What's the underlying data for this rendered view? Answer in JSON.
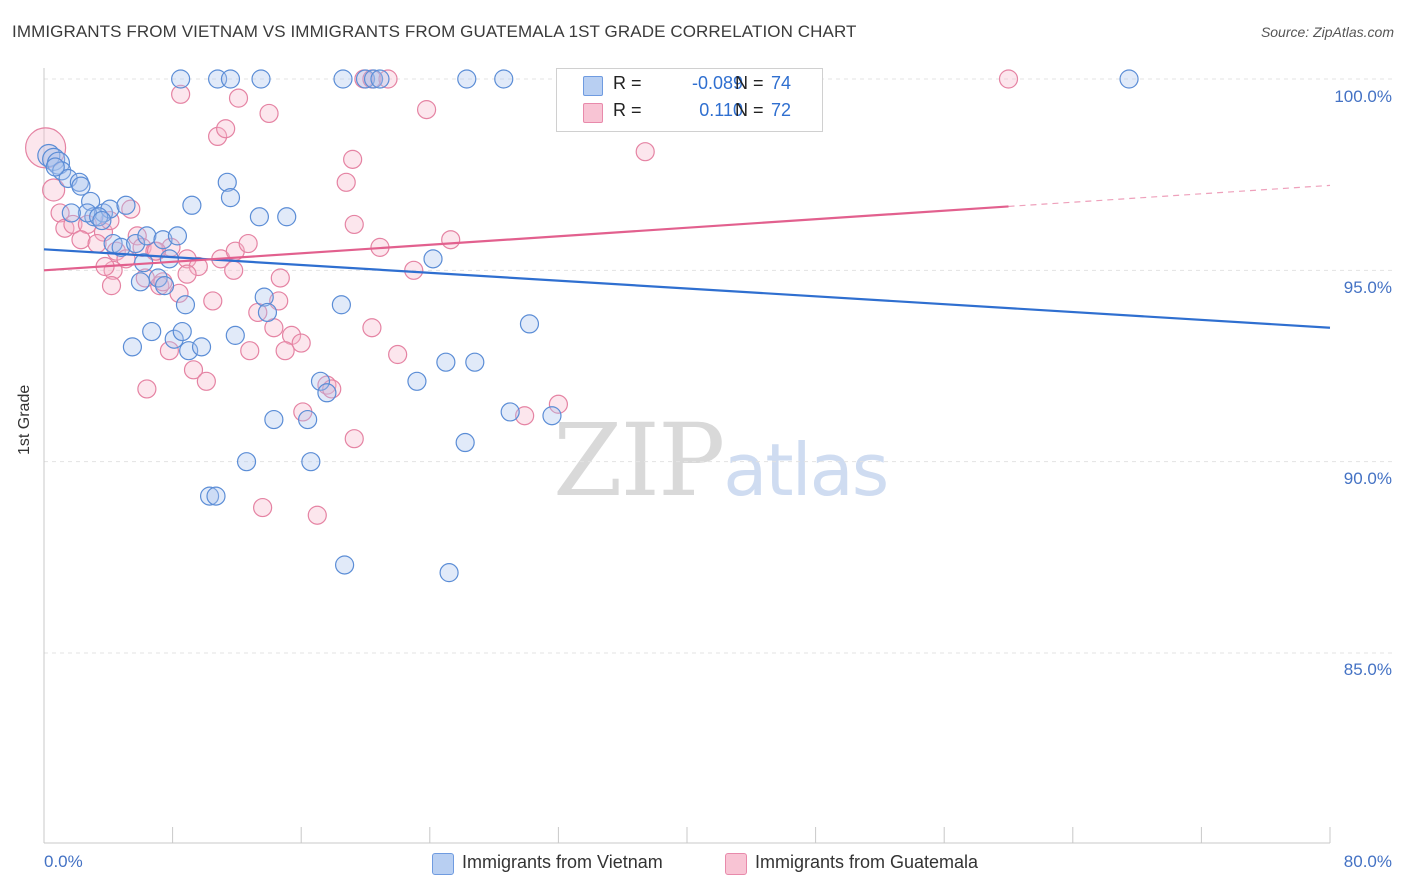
{
  "header": {
    "title": "IMMIGRANTS FROM VIETNAM VS IMMIGRANTS FROM GUATEMALA 1ST GRADE CORRELATION CHART",
    "source": "Source: ZipAtlas.com"
  },
  "watermark": {
    "zip": "ZIP",
    "atlas": "atlas"
  },
  "legend": {
    "vietnam": {
      "r_label": "R =",
      "r_value": "-0.089",
      "n_label": "N =",
      "n_value": "74"
    },
    "guatemala": {
      "r_label": "R =",
      "r_value": "0.110",
      "n_label": "N =",
      "n_value": "72"
    }
  },
  "bottom_legend": {
    "vietnam": "Immigrants from Vietnam",
    "guatemala": "Immigrants from Guatemala"
  },
  "axis": {
    "x_min_label": "0.0%",
    "x_max_label": "80.0%",
    "y_ticks": [
      "100.0%",
      "95.0%",
      "90.0%",
      "85.0%"
    ]
  },
  "colors": {
    "vietnam_fill": "#a9c4ee",
    "vietnam_stroke": "#5b8dd6",
    "vietnam_line": "#2f6fd0",
    "guatemala_fill": "#f6b8cb",
    "guatemala_stroke": "#e583a3",
    "guatemala_line": "#e2608e"
  },
  "chart_data": {
    "type": "scatter",
    "title": "IMMIGRANTS FROM VIETNAM VS IMMIGRANTS FROM GUATEMALA 1ST GRADE CORRELATION CHART",
    "xlabel": "",
    "ylabel": "1st Grade",
    "xlim": [
      0,
      80
    ],
    "ylim": [
      80.5,
      100.8
    ],
    "y_gridlines": [
      100,
      95,
      90,
      85
    ],
    "series": [
      {
        "name": "Immigrants from Vietnam",
        "r": -0.089,
        "n": 74,
        "trend": {
          "x": [
            0,
            80
          ],
          "y": [
            95.55,
            93.5
          ]
        },
        "points": [
          [
            0.3,
            98.0
          ],
          [
            0.6,
            97.9
          ],
          [
            0.9,
            97.8
          ],
          [
            1.1,
            97.6
          ],
          [
            1.5,
            97.4
          ],
          [
            2.2,
            97.3
          ],
          [
            2.9,
            96.8
          ],
          [
            3.1,
            96.4
          ],
          [
            3.7,
            96.5
          ],
          [
            4.1,
            96.6
          ],
          [
            5.1,
            96.7
          ],
          [
            2.7,
            96.5
          ],
          [
            3.4,
            96.4
          ],
          [
            4.3,
            95.7
          ],
          [
            4.8,
            95.6
          ],
          [
            5.7,
            95.7
          ],
          [
            6.4,
            95.9
          ],
          [
            6.2,
            95.2
          ],
          [
            7.4,
            95.8
          ],
          [
            8.3,
            95.9
          ],
          [
            7.8,
            95.3
          ],
          [
            7.1,
            94.8
          ],
          [
            9.2,
            96.7
          ],
          [
            11.4,
            97.3
          ],
          [
            11.6,
            96.9
          ],
          [
            13.4,
            96.4
          ],
          [
            15.1,
            96.4
          ],
          [
            6.0,
            94.7
          ],
          [
            7.5,
            94.6
          ],
          [
            8.8,
            94.1
          ],
          [
            13.7,
            94.3
          ],
          [
            13.9,
            93.9
          ],
          [
            5.5,
            93.0
          ],
          [
            6.7,
            93.4
          ],
          [
            8.1,
            93.2
          ],
          [
            8.6,
            93.4
          ],
          [
            9.0,
            92.9
          ],
          [
            9.8,
            93.0
          ],
          [
            11.9,
            93.3
          ],
          [
            18.5,
            94.1
          ],
          [
            24.2,
            95.3
          ],
          [
            30.2,
            93.6
          ],
          [
            23.2,
            92.1
          ],
          [
            25.0,
            92.6
          ],
          [
            26.8,
            92.6
          ],
          [
            17.2,
            92.1
          ],
          [
            17.6,
            91.8
          ],
          [
            14.3,
            91.1
          ],
          [
            16.4,
            91.1
          ],
          [
            26.2,
            90.5
          ],
          [
            29.0,
            91.3
          ],
          [
            31.6,
            91.2
          ],
          [
            12.6,
            90.0
          ],
          [
            16.6,
            90.0
          ],
          [
            10.3,
            89.1
          ],
          [
            10.7,
            89.1
          ],
          [
            18.7,
            87.3
          ],
          [
            25.2,
            87.1
          ],
          [
            8.5,
            100.0
          ],
          [
            10.8,
            100.0
          ],
          [
            11.6,
            100.0
          ],
          [
            13.5,
            100.0
          ],
          [
            18.6,
            100.0
          ],
          [
            20.0,
            100.0
          ],
          [
            20.5,
            100.0
          ],
          [
            20.9,
            100.0
          ],
          [
            26.3,
            100.0
          ],
          [
            28.6,
            100.0
          ],
          [
            43.2,
            100.0
          ],
          [
            67.5,
            100.0
          ],
          [
            1.7,
            96.5
          ],
          [
            3.6,
            96.3
          ],
          [
            2.3,
            97.2
          ],
          [
            0.7,
            97.7
          ]
        ]
      },
      {
        "name": "Immigrants from Guatemala",
        "r": 0.11,
        "n": 72,
        "trend": {
          "x": [
            0,
            60
          ],
          "y": [
            95.0,
            96.67
          ]
        },
        "trend_dashed": {
          "x": [
            60,
            80
          ],
          "y": [
            96.67,
            97.22
          ]
        },
        "points": [
          [
            0.1,
            98.2
          ],
          [
            0.6,
            97.1
          ],
          [
            1.0,
            96.5
          ],
          [
            1.3,
            96.1
          ],
          [
            1.8,
            96.2
          ],
          [
            2.7,
            96.2
          ],
          [
            3.7,
            96.0
          ],
          [
            4.1,
            96.3
          ],
          [
            5.4,
            96.6
          ],
          [
            5.8,
            95.9
          ],
          [
            2.3,
            95.8
          ],
          [
            3.3,
            95.7
          ],
          [
            4.5,
            95.5
          ],
          [
            5.1,
            95.3
          ],
          [
            6.1,
            95.6
          ],
          [
            6.9,
            95.5
          ],
          [
            7.9,
            95.6
          ],
          [
            8.9,
            95.3
          ],
          [
            9.6,
            95.1
          ],
          [
            11.0,
            95.3
          ],
          [
            11.9,
            95.5
          ],
          [
            12.7,
            95.7
          ],
          [
            4.3,
            95.0
          ],
          [
            4.2,
            94.6
          ],
          [
            6.3,
            94.8
          ],
          [
            7.2,
            94.6
          ],
          [
            8.4,
            94.4
          ],
          [
            10.5,
            94.2
          ],
          [
            14.7,
            94.8
          ],
          [
            14.6,
            94.2
          ],
          [
            13.3,
            93.9
          ],
          [
            14.3,
            93.5
          ],
          [
            15.4,
            93.3
          ],
          [
            16.0,
            93.1
          ],
          [
            12.8,
            92.9
          ],
          [
            15.0,
            92.9
          ],
          [
            7.8,
            92.9
          ],
          [
            9.3,
            92.4
          ],
          [
            10.1,
            92.1
          ],
          [
            6.4,
            91.9
          ],
          [
            17.6,
            92.0
          ],
          [
            17.9,
            91.9
          ],
          [
            20.4,
            93.5
          ],
          [
            22.0,
            92.8
          ],
          [
            16.1,
            91.3
          ],
          [
            29.9,
            91.2
          ],
          [
            32.0,
            91.5
          ],
          [
            19.3,
            90.6
          ],
          [
            13.6,
            88.8
          ],
          [
            17.0,
            88.6
          ],
          [
            18.8,
            97.3
          ],
          [
            19.2,
            97.9
          ],
          [
            19.3,
            96.2
          ],
          [
            20.9,
            95.6
          ],
          [
            25.3,
            95.8
          ],
          [
            23.0,
            95.0
          ],
          [
            8.5,
            99.6
          ],
          [
            10.8,
            98.5
          ],
          [
            11.3,
            98.7
          ],
          [
            12.1,
            99.5
          ],
          [
            14.0,
            99.1
          ],
          [
            19.9,
            100.0
          ],
          [
            20.4,
            100.0
          ],
          [
            21.4,
            100.0
          ],
          [
            23.8,
            99.2
          ],
          [
            37.4,
            98.1
          ],
          [
            60.0,
            100.0
          ],
          [
            7.0,
            95.5
          ],
          [
            8.9,
            94.9
          ],
          [
            11.8,
            95.0
          ],
          [
            3.8,
            95.1
          ],
          [
            7.4,
            94.7
          ]
        ]
      }
    ]
  }
}
